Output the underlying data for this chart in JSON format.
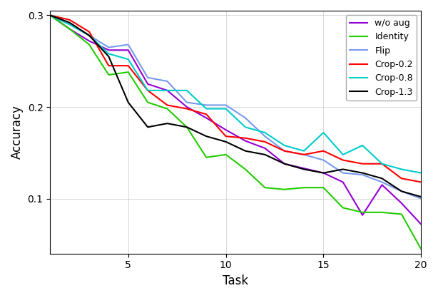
{
  "title": "",
  "xlabel": "Task",
  "ylabel": "Accuracy",
  "xlim": [
    1,
    20
  ],
  "ylim": [
    0.04,
    0.305
  ],
  "yticks": [
    0.1,
    0.2,
    0.3
  ],
  "xticks": [
    5,
    10,
    15,
    20
  ],
  "tasks": [
    1,
    2,
    3,
    4,
    5,
    6,
    7,
    8,
    9,
    10,
    11,
    12,
    13,
    14,
    15,
    16,
    17,
    18,
    19,
    20
  ],
  "series": {
    "w/o aug": {
      "color": "#9400D3",
      "data": [
        0.3,
        0.285,
        0.272,
        0.262,
        0.262,
        0.225,
        0.218,
        0.2,
        0.188,
        0.175,
        0.163,
        0.155,
        0.138,
        0.133,
        0.128,
        0.118,
        0.082,
        0.115,
        0.095,
        0.072
      ]
    },
    "Identity": {
      "color": "#22CC00",
      "data": [
        0.3,
        0.285,
        0.268,
        0.235,
        0.238,
        0.205,
        0.198,
        0.178,
        0.145,
        0.148,
        0.132,
        0.112,
        0.11,
        0.112,
        0.112,
        0.09,
        0.085,
        0.085,
        0.083,
        0.045
      ]
    },
    "Flip": {
      "color": "#7799EE",
      "data": [
        0.3,
        0.29,
        0.278,
        0.265,
        0.268,
        0.232,
        0.228,
        0.205,
        0.202,
        0.202,
        0.188,
        0.168,
        0.152,
        0.148,
        0.142,
        0.128,
        0.126,
        0.118,
        0.108,
        0.1
      ]
    },
    "Crop-0.2": {
      "color": "#FF0000",
      "data": [
        0.3,
        0.295,
        0.282,
        0.245,
        0.245,
        0.218,
        0.202,
        0.198,
        0.192,
        0.168,
        0.166,
        0.162,
        0.152,
        0.148,
        0.152,
        0.142,
        0.138,
        0.138,
        0.122,
        0.118
      ]
    },
    "Crop-0.8": {
      "color": "#00CCCC",
      "data": [
        0.3,
        0.29,
        0.278,
        0.258,
        0.252,
        0.218,
        0.218,
        0.218,
        0.198,
        0.198,
        0.178,
        0.172,
        0.158,
        0.152,
        0.172,
        0.148,
        0.158,
        0.138,
        0.132,
        0.128
      ]
    },
    "Crop-1.3": {
      "color": "#000000",
      "data": [
        0.3,
        0.292,
        0.278,
        0.255,
        0.205,
        0.178,
        0.182,
        0.178,
        0.168,
        0.162,
        0.152,
        0.148,
        0.138,
        0.132,
        0.128,
        0.132,
        0.128,
        0.122,
        0.108,
        0.102
      ]
    }
  },
  "legend_loc": "upper right",
  "grid": true,
  "figsize": [
    6.14,
    4.18
  ],
  "dpi": 100
}
